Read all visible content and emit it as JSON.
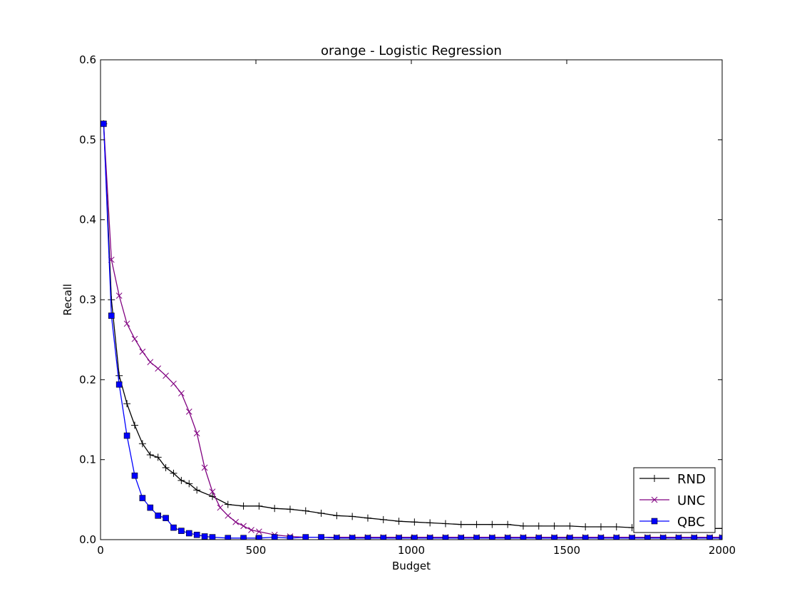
{
  "chart_data": {
    "type": "line",
    "title": "orange - Logistic Regression",
    "xlabel": "Budget",
    "ylabel": "Recall",
    "xlim": [
      0,
      2000
    ],
    "ylim": [
      0,
      0.6
    ],
    "x_ticks": [
      0,
      500,
      1000,
      1500,
      2000
    ],
    "y_ticks": [
      0.0,
      0.1,
      0.2,
      0.3,
      0.4,
      0.5,
      0.6
    ],
    "x_tick_labels": [
      "0",
      "500",
      "1000",
      "1500",
      "2000"
    ],
    "y_tick_labels": [
      "0.0",
      "0.1",
      "0.2",
      "0.3",
      "0.4",
      "0.5",
      "0.6"
    ],
    "grid": false,
    "legend_position": "bottom-right",
    "series": [
      {
        "name": "RND",
        "color": "#000000",
        "marker": "plus",
        "x": [
          10,
          35,
          60,
          85,
          110,
          135,
          160,
          185,
          210,
          235,
          260,
          285,
          310,
          360,
          410,
          460,
          510,
          560,
          610,
          660,
          710,
          760,
          810,
          860,
          910,
          960,
          1010,
          1060,
          1110,
          1160,
          1210,
          1260,
          1310,
          1360,
          1410,
          1460,
          1510,
          1560,
          1610,
          1660,
          1710,
          1760,
          1810,
          1860,
          1910,
          1960,
          2000
        ],
        "y": [
          0.52,
          0.3,
          0.205,
          0.17,
          0.143,
          0.12,
          0.106,
          0.103,
          0.09,
          0.083,
          0.074,
          0.07,
          0.062,
          0.054,
          0.044,
          0.042,
          0.042,
          0.039,
          0.038,
          0.036,
          0.033,
          0.03,
          0.029,
          0.027,
          0.025,
          0.023,
          0.022,
          0.021,
          0.02,
          0.019,
          0.019,
          0.019,
          0.019,
          0.017,
          0.017,
          0.017,
          0.017,
          0.016,
          0.016,
          0.016,
          0.015,
          0.015,
          0.015,
          0.015,
          0.015,
          0.014,
          0.014
        ]
      },
      {
        "name": "UNC",
        "color": "#800080",
        "marker": "x",
        "x": [
          10,
          35,
          60,
          85,
          110,
          135,
          160,
          185,
          210,
          235,
          260,
          285,
          310,
          335,
          360,
          385,
          410,
          435,
          460,
          485,
          510,
          560,
          610,
          660,
          710,
          760,
          810,
          860,
          910,
          960,
          1010,
          1060,
          1110,
          1160,
          1210,
          1260,
          1310,
          1360,
          1410,
          1460,
          1510,
          1560,
          1610,
          1660,
          1710,
          1760,
          1810,
          1860,
          1910,
          1960,
          2000
        ],
        "y": [
          0.52,
          0.35,
          0.305,
          0.27,
          0.251,
          0.235,
          0.222,
          0.214,
          0.205,
          0.195,
          0.183,
          0.16,
          0.133,
          0.09,
          0.06,
          0.04,
          0.03,
          0.022,
          0.017,
          0.012,
          0.01,
          0.006,
          0.004,
          0.003,
          0.003,
          0.003,
          0.003,
          0.003,
          0.003,
          0.003,
          0.003,
          0.003,
          0.003,
          0.003,
          0.003,
          0.003,
          0.003,
          0.003,
          0.003,
          0.003,
          0.003,
          0.003,
          0.003,
          0.003,
          0.003,
          0.003,
          0.003,
          0.003,
          0.003,
          0.003,
          0.003
        ]
      },
      {
        "name": "QBC",
        "color": "#0000ff",
        "marker": "square",
        "x": [
          10,
          35,
          60,
          85,
          110,
          135,
          160,
          185,
          210,
          235,
          260,
          285,
          310,
          335,
          360,
          410,
          460,
          510,
          560,
          610,
          660,
          710,
          760,
          810,
          860,
          910,
          960,
          1010,
          1060,
          1110,
          1160,
          1210,
          1260,
          1310,
          1360,
          1410,
          1460,
          1510,
          1560,
          1610,
          1660,
          1710,
          1760,
          1810,
          1860,
          1910,
          1960,
          2000
        ],
        "y": [
          0.52,
          0.28,
          0.194,
          0.13,
          0.08,
          0.052,
          0.04,
          0.03,
          0.027,
          0.015,
          0.011,
          0.008,
          0.006,
          0.004,
          0.003,
          0.002,
          0.002,
          0.002,
          0.003,
          0.002,
          0.003,
          0.003,
          0.002,
          0.002,
          0.002,
          0.002,
          0.002,
          0.002,
          0.002,
          0.002,
          0.002,
          0.002,
          0.002,
          0.002,
          0.002,
          0.002,
          0.002,
          0.002,
          0.002,
          0.002,
          0.002,
          0.002,
          0.002,
          0.002,
          0.002,
          0.002,
          0.002,
          0.002
        ]
      }
    ]
  }
}
